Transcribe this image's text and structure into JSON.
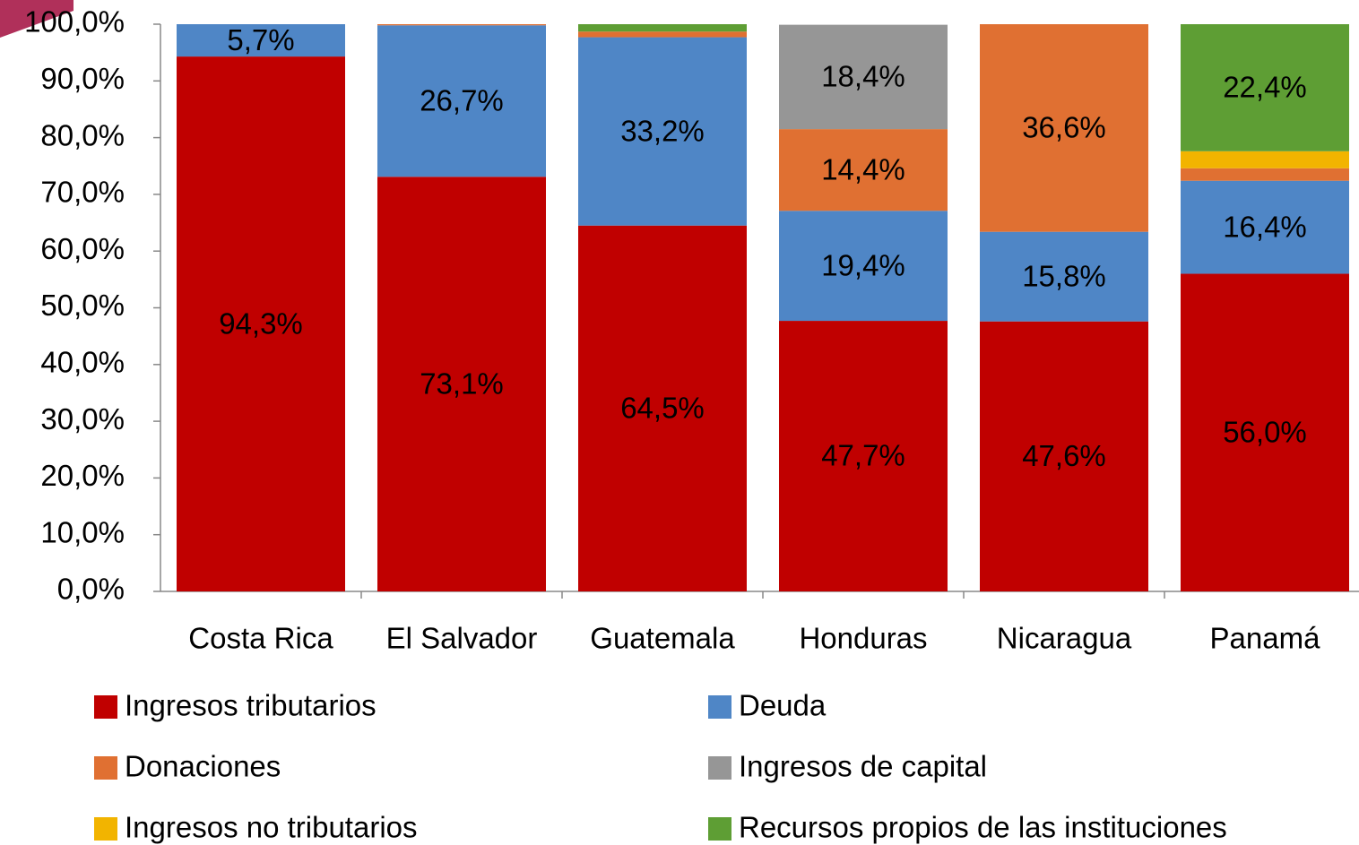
{
  "chart_data": {
    "type": "stacked_bar",
    "categories": [
      "Costa Rica",
      "El Salvador",
      "Guatemala",
      "Honduras",
      "Nicaragua",
      "Panamá"
    ],
    "ylim": [
      0,
      100
    ],
    "yticks": [
      {
        "value": 0,
        "label": "0,0%"
      },
      {
        "value": 10,
        "label": "10,0%"
      },
      {
        "value": 20,
        "label": "20,0%"
      },
      {
        "value": 30,
        "label": "30,0%"
      },
      {
        "value": 40,
        "label": "40,0%"
      },
      {
        "value": 50,
        "label": "50,0%"
      },
      {
        "value": 60,
        "label": "60,0%"
      },
      {
        "value": 70,
        "label": "70,0%"
      },
      {
        "value": 80,
        "label": "80,0%"
      },
      {
        "value": 90,
        "label": "90,0%"
      },
      {
        "value": 100,
        "label": "100,0%"
      }
    ],
    "legend": "bottom",
    "series": [
      {
        "name": "Ingresos tributarios",
        "color": "#c00000",
        "values": [
          94.3,
          73.1,
          64.5,
          47.7,
          47.6,
          56.0
        ],
        "value_labels": [
          "94,3%",
          "73,1%",
          "64,5%",
          "47,7%",
          "47,6%",
          "56,0%"
        ]
      },
      {
        "name": "Deuda",
        "color": "#4f86c6",
        "values": [
          5.7,
          26.7,
          33.2,
          19.4,
          15.8,
          16.4
        ],
        "value_labels": [
          "5,7%",
          "26,7%",
          "33,2%",
          "19,4%",
          "15,8%",
          "16,4%"
        ]
      },
      {
        "name": "Donaciones",
        "color": "#e07032",
        "values": [
          0,
          0.2,
          1.0,
          14.4,
          36.6,
          2.2
        ],
        "value_labels": [
          null,
          null,
          null,
          "14,4%",
          "36,6%",
          null
        ]
      },
      {
        "name": "Ingresos de capital",
        "color": "#969696",
        "values": [
          0,
          0,
          0,
          18.4,
          0,
          0
        ],
        "value_labels": [
          null,
          null,
          null,
          "18,4%",
          null,
          null
        ]
      },
      {
        "name": "Ingresos no tributarios",
        "color": "#f2b400",
        "values": [
          0,
          0,
          0,
          0,
          0,
          3.0
        ],
        "value_labels": [
          null,
          null,
          null,
          null,
          null,
          null
        ]
      },
      {
        "name": "Recursos propios de las instituciones",
        "color": "#5e9e34",
        "values": [
          0,
          0,
          1.3,
          0,
          0,
          22.4
        ],
        "value_labels": [
          null,
          null,
          null,
          null,
          null,
          "22,4%"
        ]
      }
    ]
  }
}
